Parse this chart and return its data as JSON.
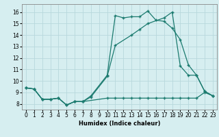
{
  "xlabel": "Humidex (Indice chaleur)",
  "bg_color": "#d6eef0",
  "grid_color": "#b8d8dc",
  "line_color": "#1a7a6e",
  "xlim": [
    -0.5,
    23.5
  ],
  "ylim": [
    7.5,
    16.7
  ],
  "xticks": [
    0,
    1,
    2,
    3,
    4,
    5,
    6,
    7,
    8,
    9,
    10,
    11,
    12,
    13,
    14,
    15,
    16,
    17,
    18,
    19,
    20,
    21,
    22,
    23
  ],
  "yticks": [
    8,
    9,
    10,
    11,
    12,
    13,
    14,
    15,
    16
  ],
  "curve1_x": [
    0,
    1,
    2,
    3,
    4,
    5,
    6,
    7,
    8,
    10,
    11,
    12,
    13,
    14,
    15,
    16,
    17,
    18,
    19,
    20,
    21,
    22,
    23
  ],
  "curve1_y": [
    9.4,
    9.3,
    8.4,
    8.4,
    8.5,
    7.9,
    8.2,
    8.2,
    8.7,
    10.5,
    15.7,
    15.5,
    15.6,
    15.6,
    16.1,
    15.3,
    15.2,
    14.6,
    13.6,
    11.4,
    10.5,
    9.1,
    8.7
  ],
  "curve2_x": [
    0,
    1,
    2,
    3,
    4,
    5,
    6,
    7,
    8,
    10,
    11,
    13,
    14,
    15,
    17,
    18,
    19,
    20,
    21,
    22,
    23
  ],
  "curve2_y": [
    9.4,
    9.3,
    8.4,
    8.4,
    8.5,
    7.9,
    8.2,
    8.2,
    8.6,
    10.4,
    13.1,
    14.0,
    14.5,
    15.0,
    15.5,
    16.0,
    11.3,
    10.5,
    10.5,
    9.1,
    8.7
  ],
  "curve3_x": [
    0,
    1,
    2,
    3,
    4,
    5,
    6,
    7,
    10,
    11,
    12,
    13,
    14,
    15,
    16,
    17,
    18,
    19,
    20,
    21,
    22,
    23
  ],
  "curve3_y": [
    9.4,
    9.3,
    8.4,
    8.4,
    8.5,
    7.9,
    8.2,
    8.2,
    8.5,
    8.5,
    8.5,
    8.5,
    8.5,
    8.5,
    8.5,
    8.5,
    8.5,
    8.5,
    8.5,
    8.5,
    9.0,
    8.7
  ]
}
